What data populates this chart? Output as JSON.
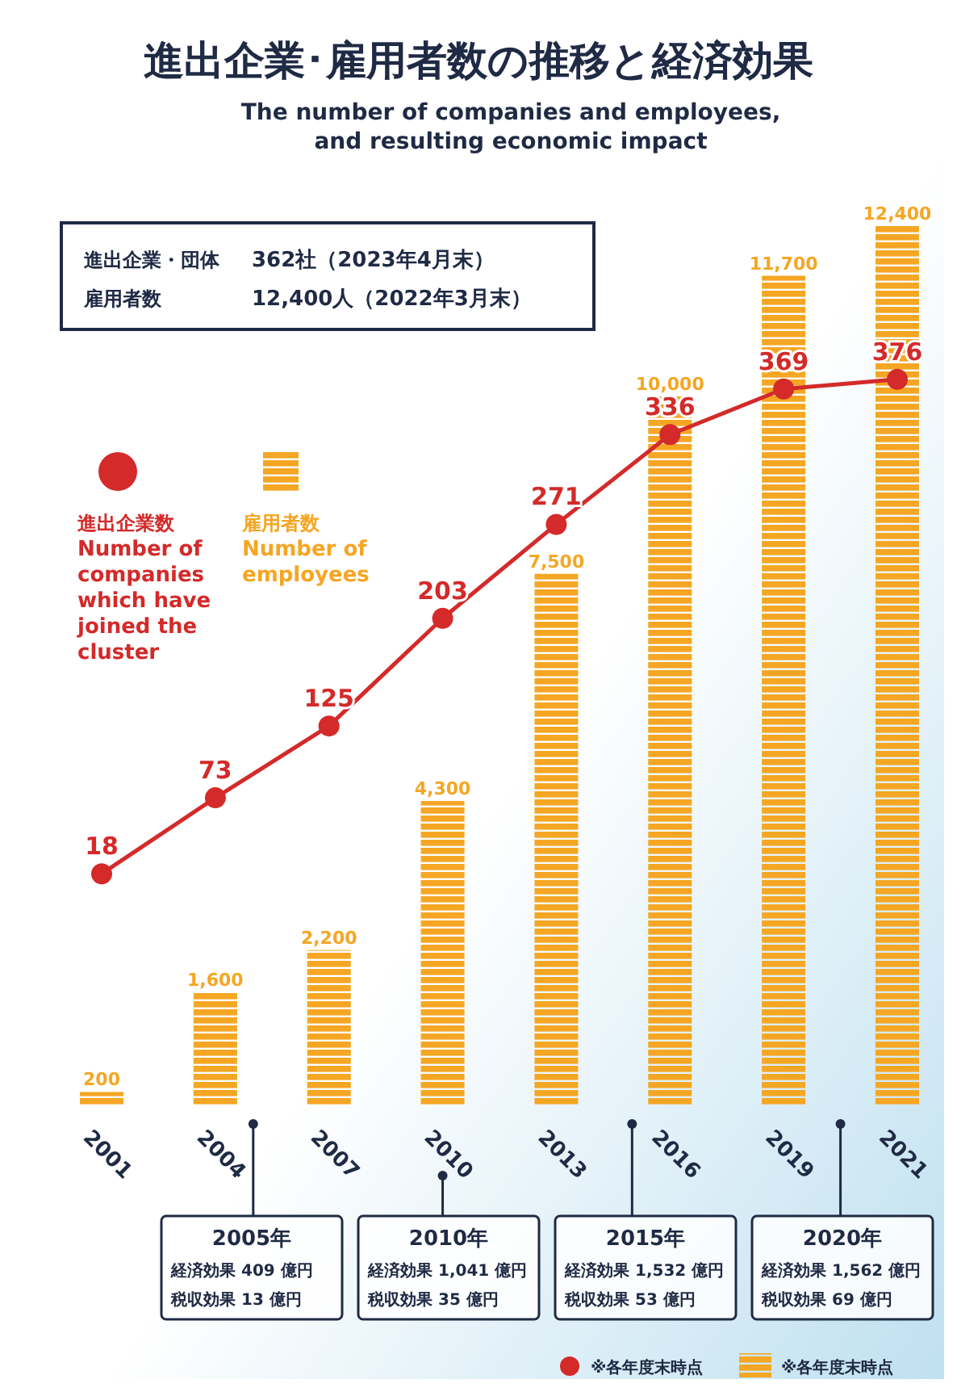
{
  "chart_data": {
    "type": "bar",
    "title": "進出企業･雇用者数の推移と経済効果",
    "subtitle": "The number of companies and employees,\nand resulting economic impact",
    "categories": [
      "2001",
      "2004",
      "2007",
      "2010",
      "2013",
      "2016",
      "2019",
      "2021"
    ],
    "series": [
      {
        "name": "雇用者数\nNumber of\nemployees",
        "color": "#f5a623",
        "values": [
          200,
          1600,
          2200,
          4300,
          7500,
          10000,
          11700,
          12400
        ],
        "value_labels": [
          "200",
          "1,600",
          "2,200",
          "4,300",
          "7,500",
          "10,000",
          "11,700",
          "12,400"
        ]
      },
      {
        "name": "進出企業数\nNumber of\ncompanies\nwhich have\njoined the\ncluster",
        "type": "line",
        "axis": "y2",
        "color": "#d42a2a",
        "values": [
          18,
          73,
          125,
          203,
          271,
          336,
          369,
          376
        ],
        "value_labels": [
          "18",
          "73",
          "125",
          "203",
          "271",
          "336",
          "369",
          "376"
        ]
      }
    ],
    "tick_labels": "x",
    "legend": "left",
    "marker": "circle",
    "annotations": [
      "進出企業・団体",
      "362社（2023年4月末）",
      "雇用者数",
      "12,400人（2022年3月末）",
      "2005年",
      "経済効果 409 億円",
      "税収効果 13 億円",
      "2010年",
      "経済効果 1,041 億円",
      "税収効果 35 億円",
      "2015年",
      "経済効果 1,532 億円",
      "税収効果 53 億円",
      "2020年",
      "経済効果 1,562 億円",
      "税収効果 69 億円",
      "※各年度末時点",
      "※各年度末時点"
    ]
  }
}
